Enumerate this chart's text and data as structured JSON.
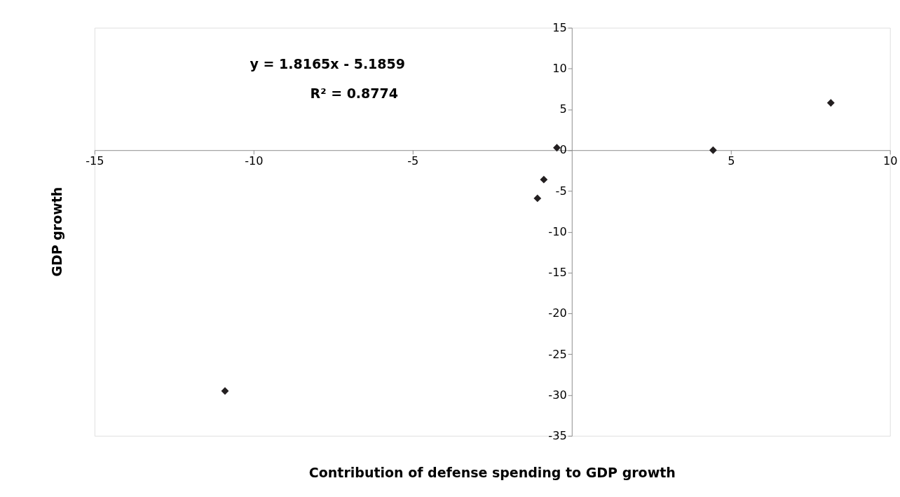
{
  "chart_data": {
    "type": "scatter",
    "xlabel": "Contribution of defense spending to GDP growth",
    "ylabel": "GDP growth",
    "x": [
      -10.9,
      -1.08,
      -0.88,
      -0.47,
      4.44,
      8.14
    ],
    "series": [
      {
        "color": "#231f20",
        "values": [
          -29.5,
          -5.9,
          -3.6,
          0.3,
          0.0,
          5.8
        ]
      }
    ],
    "xlim": [
      -15,
      10
    ],
    "ylim": [
      -35,
      15
    ],
    "xticks": [
      -15,
      -10,
      -5,
      5,
      10
    ],
    "yticks": [
      -35,
      -30,
      -25,
      -20,
      -15,
      -10,
      -5,
      0,
      5,
      10,
      15
    ],
    "marker": "diamond",
    "grid": false,
    "annotations": [
      "y = 1.8165x - 5.1859",
      "R² = 0.8774"
    ]
  }
}
